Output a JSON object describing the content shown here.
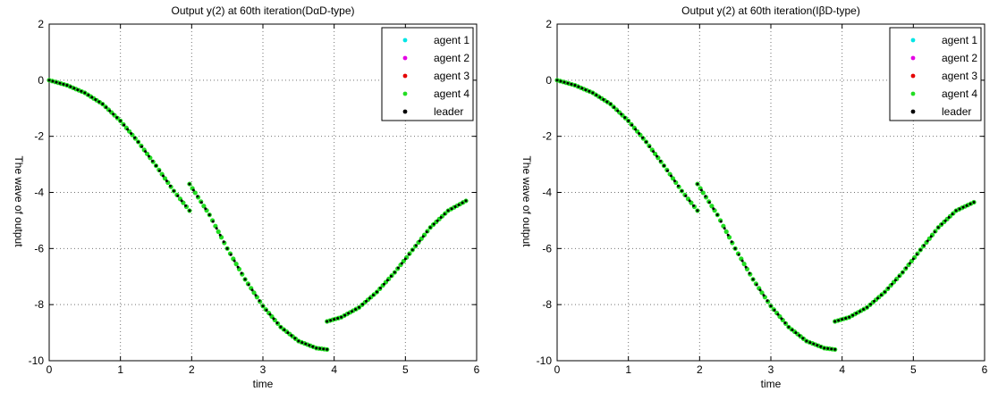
{
  "chart_data": [
    {
      "type": "scatter",
      "title": "Output y(2) at 60th iteration(DαD-type)",
      "xlabel": "time",
      "ylabel": "The wave of output",
      "xlim": [
        0,
        6
      ],
      "ylim": [
        -10,
        2
      ],
      "xticks": [
        "0",
        "1",
        "2",
        "3",
        "4",
        "5",
        "6"
      ],
      "yticks": [
        "2",
        "0",
        "-2",
        "-4",
        "-6",
        "-8",
        "-10"
      ],
      "grid": true,
      "legend": "top-right",
      "series": [
        {
          "name": "agent 1",
          "color": "#00e5e5"
        },
        {
          "name": "agent 2",
          "color": "#e500e5"
        },
        {
          "name": "agent 3",
          "color": "#e50000"
        },
        {
          "name": "agent 4",
          "color": "#22dd22"
        },
        {
          "name": "leader",
          "color": "#000000"
        }
      ],
      "segments": [
        {
          "t": [
            0,
            0.25,
            0.5,
            0.75,
            1.0,
            1.25,
            1.5,
            1.75,
            1.97
          ],
          "y": [
            0,
            -0.18,
            -0.45,
            -0.85,
            -1.45,
            -2.2,
            -3.05,
            -3.95,
            -4.65
          ]
        },
        {
          "t": [
            1.97,
            2.25,
            2.5,
            2.75,
            3.0,
            3.25,
            3.5,
            3.75,
            3.9
          ],
          "y": [
            -3.7,
            -4.8,
            -6.0,
            -7.1,
            -8.05,
            -8.8,
            -9.3,
            -9.55,
            -9.6
          ]
        },
        {
          "t": [
            3.9,
            4.1,
            4.35,
            4.6,
            4.85,
            5.1,
            5.35,
            5.6,
            5.85
          ],
          "y": [
            -8.6,
            -8.45,
            -8.1,
            -7.55,
            -6.85,
            -6.05,
            -5.25,
            -4.65,
            -4.3
          ]
        }
      ]
    },
    {
      "type": "scatter",
      "title": "Output y(2) at 60th iteration(IβD-type)",
      "xlabel": "time",
      "ylabel": "The wave of output",
      "xlim": [
        0,
        6
      ],
      "ylim": [
        -10,
        2
      ],
      "xticks": [
        "0",
        "1",
        "2",
        "3",
        "4",
        "5",
        "6"
      ],
      "yticks": [
        "2",
        "0",
        "-2",
        "-4",
        "-6",
        "-8",
        "-10"
      ],
      "grid": true,
      "legend": "top-right",
      "series": [
        {
          "name": "agent 1",
          "color": "#00e5e5"
        },
        {
          "name": "agent 2",
          "color": "#e500e5"
        },
        {
          "name": "agent 3",
          "color": "#e50000"
        },
        {
          "name": "agent 4",
          "color": "#22dd22"
        },
        {
          "name": "leader",
          "color": "#000000"
        }
      ],
      "segments": [
        {
          "t": [
            0,
            0.25,
            0.5,
            0.75,
            1.0,
            1.25,
            1.5,
            1.75,
            1.97
          ],
          "y": [
            0,
            -0.18,
            -0.45,
            -0.85,
            -1.45,
            -2.2,
            -3.05,
            -3.95,
            -4.65
          ]
        },
        {
          "t": [
            1.97,
            2.25,
            2.5,
            2.75,
            3.0,
            3.25,
            3.5,
            3.75,
            3.9
          ],
          "y": [
            -3.7,
            -4.8,
            -6.0,
            -7.1,
            -8.05,
            -8.8,
            -9.3,
            -9.55,
            -9.6
          ]
        },
        {
          "t": [
            3.9,
            4.1,
            4.35,
            4.6,
            4.85,
            5.1,
            5.35,
            5.6,
            5.85
          ],
          "y": [
            -8.6,
            -8.45,
            -8.1,
            -7.55,
            -6.85,
            -6.05,
            -5.25,
            -4.65,
            -4.35
          ]
        }
      ]
    }
  ]
}
